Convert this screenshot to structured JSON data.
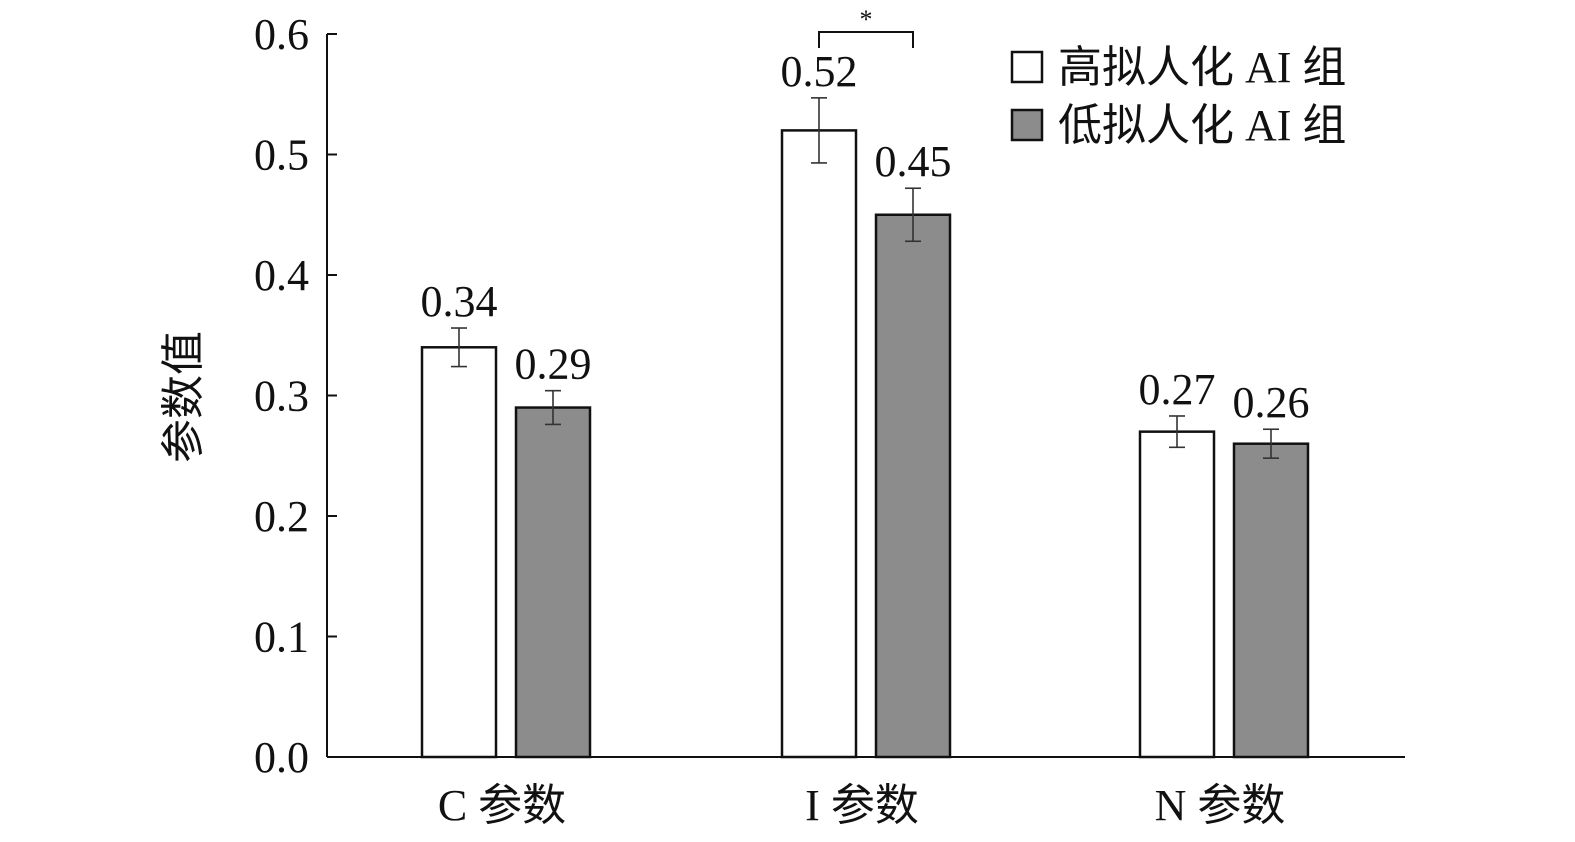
{
  "chart_data": {
    "type": "bar",
    "categories": [
      "C 参数",
      "I 参数",
      "N 参数"
    ],
    "series": [
      {
        "name": "高拟人化 AI 组",
        "values": [
          0.34,
          0.52,
          0.27
        ],
        "errors": [
          0.016,
          0.027,
          0.013
        ],
        "color": "#ffffff"
      },
      {
        "name": "低拟人化 AI 组",
        "values": [
          0.29,
          0.45,
          0.26
        ],
        "errors": [
          0.014,
          0.022,
          0.012
        ],
        "color": "#8c8c8c"
      }
    ],
    "data_labels": [
      [
        "0.34",
        "0.52",
        "0.27"
      ],
      [
        "0.29",
        "0.45",
        "0.26"
      ]
    ],
    "ylabel": "参数值",
    "xlabel": "",
    "ylim": [
      0,
      0.6
    ],
    "yticks": [
      "0.0",
      "0.1",
      "0.2",
      "0.3",
      "0.4",
      "0.5",
      "0.6"
    ],
    "legend_position": "top-right",
    "grid": false,
    "annotations": [
      {
        "type": "significance",
        "category": "I 参数",
        "text": "*"
      }
    ]
  }
}
